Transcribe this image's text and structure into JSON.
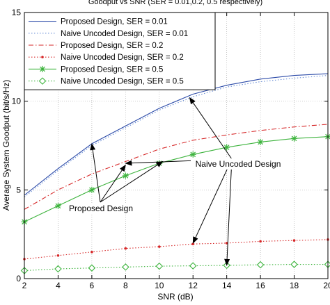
{
  "chart_data": {
    "type": "line",
    "title": "Goodput vs SNR (SER = 0.01,0.2, 0.5 respectively)",
    "xlabel": "SNR (dB)",
    "ylabel": "Average System Goodput (bit/s/Hz)",
    "xlim": [
      2,
      20
    ],
    "ylim": [
      0,
      15
    ],
    "xticks": [
      2,
      4,
      6,
      8,
      10,
      12,
      14,
      16,
      18,
      20
    ],
    "yticks": [
      0,
      5,
      10,
      15
    ],
    "grid": true,
    "legend_position": "top-right",
    "series": [
      {
        "name": "Proposed Design, SER = 0.01",
        "color": "#2b4aa8",
        "style": "solid",
        "marker": "none",
        "x": [
          2,
          4,
          6,
          8,
          10,
          12,
          14,
          16,
          18,
          20
        ],
        "y": [
          4.7,
          6.2,
          7.6,
          8.6,
          9.6,
          10.4,
          10.9,
          11.25,
          11.45,
          11.55
        ]
      },
      {
        "name": "Naive Uncoded Design, SER = 0.01",
        "color": "#6b8fd6",
        "style": "dotted",
        "marker": "none",
        "x": [
          2,
          4,
          6,
          8,
          10,
          12,
          14,
          16,
          18,
          20
        ],
        "y": [
          4.6,
          6.1,
          7.5,
          8.5,
          9.5,
          10.25,
          10.8,
          11.1,
          11.3,
          11.45
        ]
      },
      {
        "name": "Proposed Design, SER = 0.2",
        "color": "#d62728",
        "style": "dashdot",
        "marker": "none",
        "x": [
          2,
          4,
          6,
          8,
          10,
          12,
          14,
          16,
          18,
          20
        ],
        "y": [
          3.9,
          5.0,
          5.9,
          6.6,
          7.3,
          7.8,
          8.1,
          8.35,
          8.55,
          8.7
        ]
      },
      {
        "name": "Naive Uncoded Design, SER = 0.2",
        "color": "#d62728",
        "style": "dotted",
        "marker": "dot",
        "x": [
          2,
          4,
          6,
          8,
          10,
          12,
          14,
          16,
          18,
          20
        ],
        "y": [
          1.1,
          1.3,
          1.5,
          1.7,
          1.8,
          1.95,
          2.0,
          2.1,
          2.15,
          2.2
        ]
      },
      {
        "name": "Proposed Design, SER = 0.5",
        "color": "#3cb33c",
        "style": "solid",
        "marker": "star",
        "x": [
          2,
          4,
          6,
          8,
          10,
          12,
          14,
          16,
          18,
          20
        ],
        "y": [
          3.2,
          4.1,
          5.0,
          5.8,
          6.5,
          7.0,
          7.4,
          7.7,
          7.9,
          8.0
        ]
      },
      {
        "name": "Naive Uncoded Design, SER = 0.5",
        "color": "#3cb33c",
        "style": "dotted",
        "marker": "diamond",
        "x": [
          2,
          4,
          6,
          8,
          10,
          12,
          14,
          16,
          18,
          20
        ],
        "y": [
          0.45,
          0.55,
          0.6,
          0.65,
          0.7,
          0.72,
          0.75,
          0.78,
          0.8,
          0.8
        ]
      }
    ],
    "annotations": [
      {
        "text": "Naive Uncoded Design",
        "arrows_to": [
          [
            11.8,
            10.2
          ],
          [
            8.0,
            6.5
          ],
          [
            12.0,
            2.0
          ],
          [
            14.0,
            0.75
          ]
        ]
      },
      {
        "text": "Proposed Design",
        "arrows_to": [
          [
            6.0,
            7.6
          ],
          [
            8.0,
            6.4
          ],
          [
            10.2,
            6.6
          ]
        ]
      }
    ]
  }
}
